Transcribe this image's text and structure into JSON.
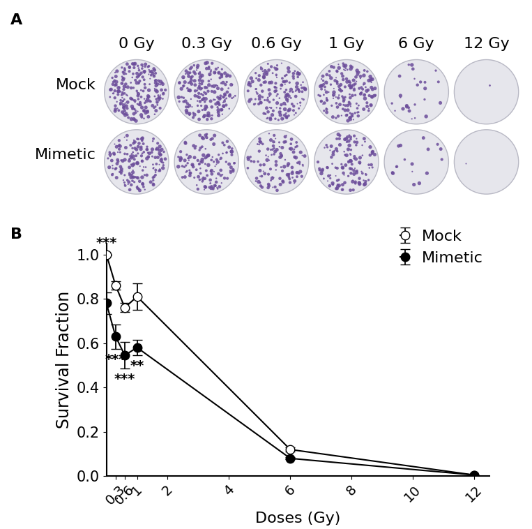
{
  "panel_a": {
    "label": "A",
    "columns": [
      "0 Gy",
      "0.3 Gy",
      "0.6 Gy",
      "1 Gy",
      "6 Gy",
      "12 Gy"
    ],
    "rows": [
      "Mock",
      "Mimetic"
    ]
  },
  "chart_data": {
    "type": "line",
    "panel_label": "B",
    "x_label": "Doses (Gy)",
    "y_label": "Survival Fraction",
    "x": [
      0,
      0.3,
      0.6,
      1,
      6,
      12
    ],
    "xlim": [
      0,
      12.5
    ],
    "xticks": [
      0.3,
      0.6,
      1,
      2,
      4,
      6,
      8,
      10,
      12
    ],
    "ylim": [
      0,
      1.05
    ],
    "yticks": [
      {
        "value": 0,
        "label": "0.0"
      },
      {
        "value": 0.2,
        "label": "0.2"
      },
      {
        "value": 0.4,
        "label": "0.4"
      },
      {
        "value": 0.6,
        "label": "0.6"
      },
      {
        "value": 0.8,
        "label": "0.8"
      },
      {
        "value": 1.0,
        "label": "1.0"
      }
    ],
    "grid": false,
    "legend": "upper right",
    "series": [
      {
        "name": "Mock",
        "color": "#000000",
        "marker": "open_circle",
        "values": [
          1.0,
          0.86,
          0.76,
          0.81,
          0.12,
          0.005
        ],
        "errors": [
          0.0,
          0.02,
          0.02,
          0.06,
          0.01,
          0.0
        ]
      },
      {
        "name": "Mimetic",
        "color": "#000000",
        "marker": "circle",
        "values": [
          0.78,
          0.63,
          0.545,
          0.58,
          0.08,
          0.005
        ],
        "errors": [
          0.05,
          0.055,
          0.06,
          0.035,
          0.005,
          0.0
        ]
      }
    ],
    "annotations": [
      {
        "text": "***",
        "x": 0,
        "series": "Mock",
        "side": "above"
      },
      {
        "text": "***",
        "x": 0.3,
        "series": "Mimetic",
        "side": "below"
      },
      {
        "text": "***",
        "x": 0.6,
        "series": "Mimetic",
        "side": "below"
      },
      {
        "text": "**",
        "x": 1,
        "series": "Mimetic",
        "side": "below"
      }
    ]
  }
}
